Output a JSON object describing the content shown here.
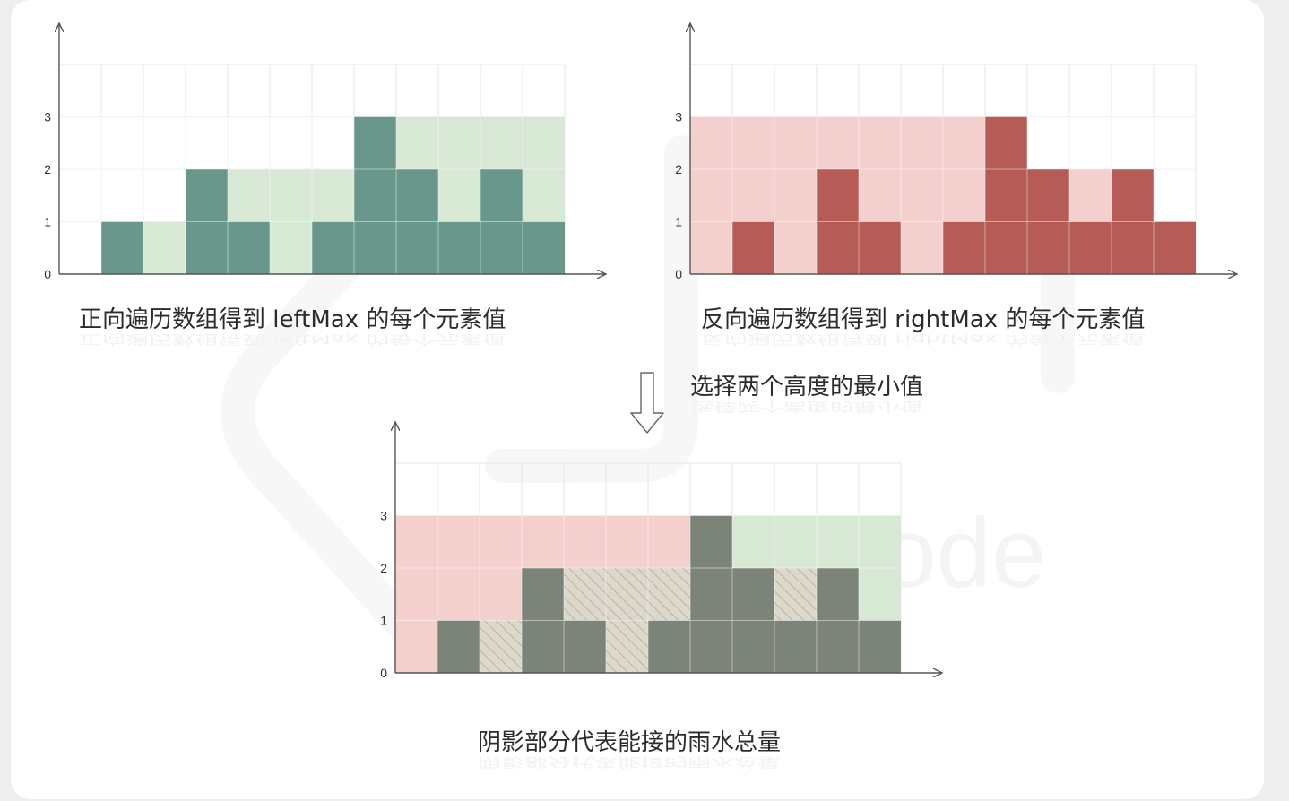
{
  "charts": [
    {
      "id": "left-max",
      "caption": "正向遍历数组得到 leftMax 的每个元素值",
      "heights": [
        0,
        1,
        0,
        2,
        1,
        0,
        1,
        3,
        2,
        1,
        2,
        1
      ],
      "fill_values": [
        0,
        1,
        1,
        2,
        2,
        2,
        2,
        3,
        3,
        3,
        3,
        3
      ],
      "y_ticks": [
        "0",
        "1",
        "2",
        "3"
      ],
      "bar_color": "#6a978c",
      "fill_color": "#d7e8d5"
    },
    {
      "id": "right-max",
      "caption": "反向遍历数组得到 rightMax 的每个元素值",
      "heights": [
        0,
        1,
        0,
        2,
        1,
        0,
        1,
        3,
        2,
        1,
        2,
        1
      ],
      "fill_values": [
        3,
        3,
        3,
        3,
        3,
        3,
        3,
        3,
        2,
        2,
        2,
        1
      ],
      "y_ticks": [
        "0",
        "1",
        "2",
        "3"
      ],
      "bar_color": "#b55c56",
      "fill_color": "#f3d0ce"
    },
    {
      "id": "water",
      "caption": "阴影部分代表能接的雨水总量",
      "heights": [
        0,
        1,
        0,
        2,
        1,
        0,
        1,
        3,
        2,
        1,
        2,
        1
      ],
      "left_max": [
        0,
        1,
        1,
        2,
        2,
        2,
        2,
        3,
        3,
        3,
        3,
        3
      ],
      "right_max": [
        3,
        3,
        3,
        3,
        3,
        3,
        3,
        3,
        2,
        2,
        2,
        1
      ],
      "y_ticks": [
        "0",
        "1",
        "2",
        "3"
      ],
      "bar_color": "#7c847a",
      "left_color": "#d7e8d5",
      "right_color": "#f3d0ce",
      "hatch_color": "#d8d4c8"
    }
  ],
  "step_label": "选择两个高度的最小值",
  "watermark": "LeetCode"
}
